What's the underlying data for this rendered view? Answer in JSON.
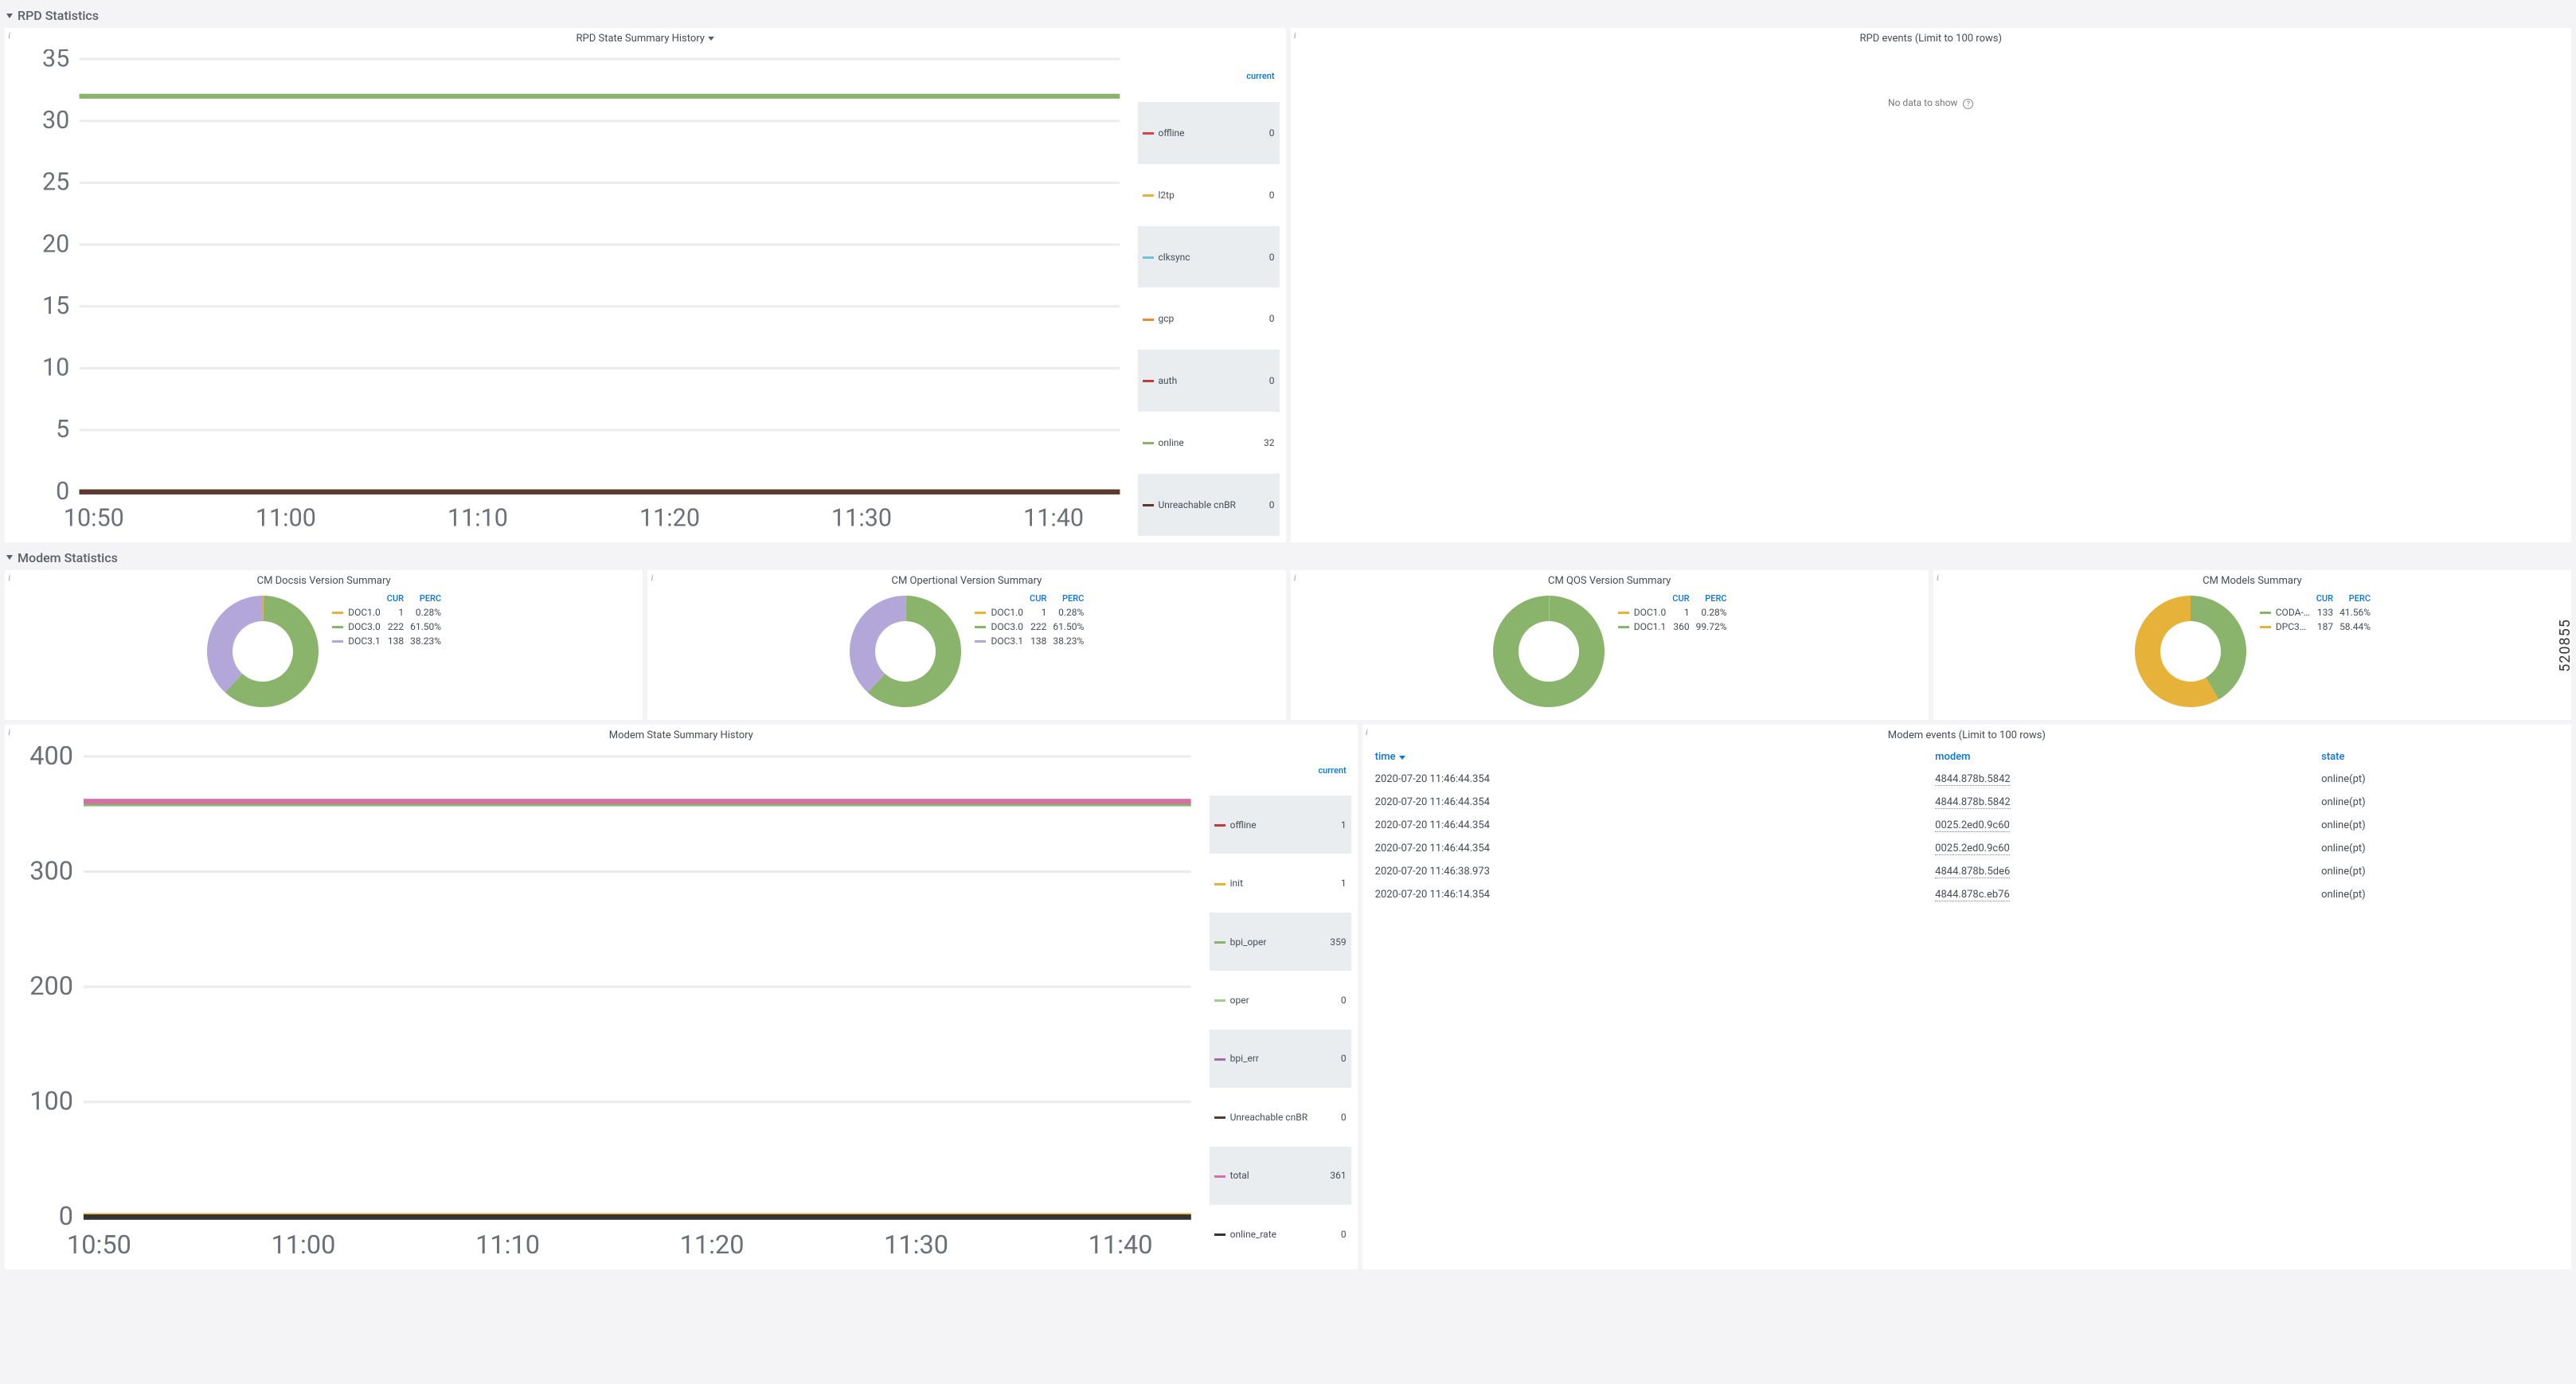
{
  "side_label": "520855",
  "sections": {
    "rpd": {
      "title": "RPD Statistics"
    },
    "modem": {
      "title": "Modem Statistics"
    }
  },
  "rpd_state_history": {
    "title": "RPD State Summary History",
    "type": "line",
    "xlim": [
      "10:50",
      "11:45"
    ],
    "xticks": [
      "10:50",
      "11:00",
      "11:10",
      "11:20",
      "11:30",
      "11:40"
    ],
    "ylim": [
      0,
      35
    ],
    "yticks": [
      0,
      5,
      10,
      15,
      20,
      25,
      30,
      35
    ],
    "background_color": "#ffffff",
    "grid_color": "#ececec",
    "legend_header": "current",
    "series": [
      {
        "name": "offline",
        "color": "#d64545",
        "current": 0,
        "const_value": 0
      },
      {
        "name": "l2tp",
        "color": "#e6b23a",
        "current": 0,
        "const_value": 0
      },
      {
        "name": "clksync",
        "color": "#6ec4d8",
        "current": 0,
        "const_value": 0
      },
      {
        "name": "gcp",
        "color": "#e78a3b",
        "current": 0,
        "const_value": 0
      },
      {
        "name": "auth",
        "color": "#c23b3b",
        "current": 0,
        "const_value": 0
      },
      {
        "name": "online",
        "color": "#8ab36b",
        "current": 32,
        "const_value": 32
      },
      {
        "name": "Unreachable cnBR",
        "color": "#5a3a2e",
        "current": 0,
        "const_value": 0
      }
    ]
  },
  "rpd_events": {
    "title": "RPD events (Limit to 100 rows)",
    "no_data_text": "No data to show"
  },
  "donuts": {
    "cur_header": "CUR",
    "perc_header": "PERC",
    "charts": [
      {
        "title": "CM Docsis Version Summary",
        "slices": [
          {
            "label": "DOC1.0",
            "color": "#e6b23a",
            "cur": 1,
            "perc": "0.28%",
            "frac": 0.0028
          },
          {
            "label": "DOC3.0",
            "color": "#8ab36b",
            "cur": 222,
            "perc": "61.50%",
            "frac": 0.615
          },
          {
            "label": "DOC3.1",
            "color": "#b3a6d9",
            "cur": 138,
            "perc": "38.23%",
            "frac": 0.3822
          }
        ]
      },
      {
        "title": "CM Opertional Version Summary",
        "slices": [
          {
            "label": "DOC1.0",
            "color": "#e6b23a",
            "cur": 1,
            "perc": "0.28%",
            "frac": 0.0028
          },
          {
            "label": "DOC3.0",
            "color": "#8ab36b",
            "cur": 222,
            "perc": "61.50%",
            "frac": 0.615
          },
          {
            "label": "DOC3.1",
            "color": "#b3a6d9",
            "cur": 138,
            "perc": "38.23%",
            "frac": 0.3822
          }
        ]
      },
      {
        "title": "CM QOS Version Summary",
        "slices": [
          {
            "label": "DOC1.0",
            "color": "#e6b23a",
            "cur": 1,
            "perc": "0.28%",
            "frac": 0.0028
          },
          {
            "label": "DOC1.1",
            "color": "#8ab36b",
            "cur": 360,
            "perc": "99.72%",
            "frac": 0.9972
          }
        ]
      },
      {
        "title": "CM Models Summary",
        "slices": [
          {
            "label": "CODA-…",
            "color": "#8ab36b",
            "cur": 133,
            "perc": "41.56%",
            "frac": 0.4156
          },
          {
            "label": "DPC3…",
            "color": "#e6b23a",
            "cur": 187,
            "perc": "58.44%",
            "frac": 0.5844
          }
        ]
      }
    ]
  },
  "modem_state_history": {
    "title": "Modem State Summary History",
    "type": "line",
    "xlim": [
      "10:50",
      "11:45"
    ],
    "xticks": [
      "10:50",
      "11:00",
      "11:10",
      "11:20",
      "11:30",
      "11:40"
    ],
    "ylim": [
      0,
      400
    ],
    "yticks": [
      0,
      100,
      200,
      300,
      400
    ],
    "background_color": "#ffffff",
    "grid_color": "#ececec",
    "legend_header": "current",
    "series": [
      {
        "name": "offline",
        "color": "#c23b3b",
        "current": 1,
        "const_value": 1
      },
      {
        "name": "init",
        "color": "#e6b23a",
        "current": 1,
        "const_value": 1
      },
      {
        "name": "bpi_oper",
        "color": "#8ab36b",
        "current": 359,
        "const_value": 359
      },
      {
        "name": "oper",
        "color": "#9ed08a",
        "current": 0,
        "const_value": 0
      },
      {
        "name": "bpi_err",
        "color": "#a56aa8",
        "current": 0,
        "const_value": 0
      },
      {
        "name": "Unreachable cnBR",
        "color": "#5a3a2e",
        "current": 0,
        "const_value": 0
      },
      {
        "name": "total",
        "color": "#d46fa8",
        "current": 361,
        "const_value": 361
      },
      {
        "name": "online_rate",
        "color": "#333333",
        "current": 0,
        "const_value": 0
      }
    ]
  },
  "modem_events": {
    "title": "Modem events (Limit to 100 rows)",
    "columns": {
      "time": "time",
      "modem": "modem",
      "state": "state"
    },
    "rows": [
      {
        "time": "2020-07-20 11:46:44.354",
        "modem": "4844.878b.5842",
        "state": "online(pt)"
      },
      {
        "time": "2020-07-20 11:46:44.354",
        "modem": "4844.878b.5842",
        "state": "online(pt)"
      },
      {
        "time": "2020-07-20 11:46:44.354",
        "modem": "0025.2ed0.9c60",
        "state": "online(pt)"
      },
      {
        "time": "2020-07-20 11:46:44.354",
        "modem": "0025.2ed0.9c60",
        "state": "online(pt)"
      },
      {
        "time": "2020-07-20 11:46:38.973",
        "modem": "4844.878b.5de6",
        "state": "online(pt)"
      },
      {
        "time": "2020-07-20 11:46:14.354",
        "modem": "4844.878c.eb76",
        "state": "online(pt)"
      }
    ]
  }
}
